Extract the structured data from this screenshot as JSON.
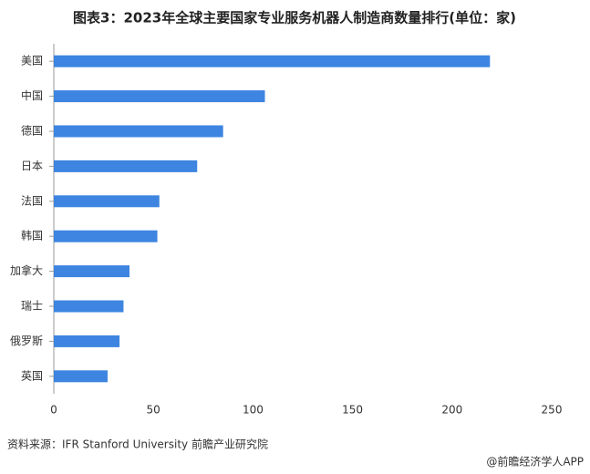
{
  "chart_data": {
    "type": "bar",
    "orientation": "horizontal",
    "title": "图表3：2023年全球主要国家专业服务机器人制造商数量排行(单位：家)",
    "categories": [
      "美国",
      "中国",
      "德国",
      "日本",
      "法国",
      "韩国",
      "加拿大",
      "瑞士",
      "俄罗斯",
      "英国"
    ],
    "values": [
      219,
      106,
      85,
      72,
      53,
      52,
      38,
      35,
      33,
      27
    ],
    "color": "#3d85e0",
    "xlim": [
      0,
      250
    ],
    "xticks": [
      0,
      50,
      100,
      150,
      200,
      250
    ],
    "grid": false,
    "source": "资料来源：IFR Stanford University 前瞻产业研究院",
    "credit": "@前瞻经济学人APP"
  }
}
